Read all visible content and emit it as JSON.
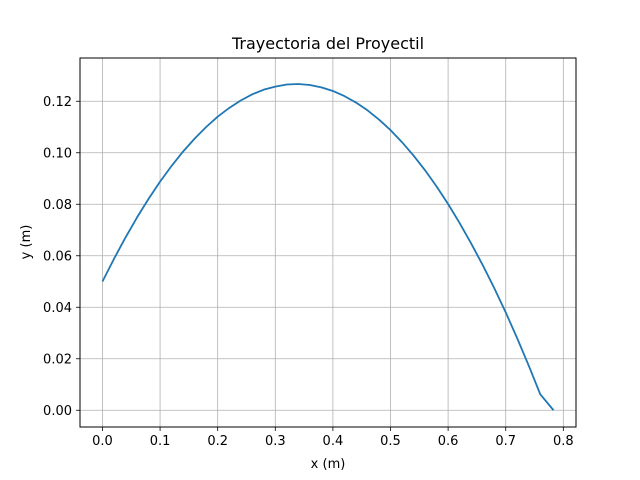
{
  "chart_data": {
    "type": "line",
    "title": "Trayectoria del Proyectil",
    "xlabel": "x (m)",
    "ylabel": "y (m)",
    "xlim": [
      -0.039,
      0.822
    ],
    "ylim": [
      -0.0065,
      0.1368
    ],
    "grid": true,
    "legend": "none",
    "x_ticks": [
      "0.0",
      "0.1",
      "0.2",
      "0.3",
      "0.4",
      "0.5",
      "0.6",
      "0.7",
      "0.8"
    ],
    "y_ticks": [
      "0.00",
      "0.02",
      "0.04",
      "0.06",
      "0.08",
      "0.10",
      "0.12"
    ],
    "series": [
      {
        "color": "#1f77b4",
        "x": [
          0.0,
          0.02,
          0.04,
          0.06,
          0.08,
          0.1,
          0.12,
          0.14,
          0.16,
          0.18,
          0.2,
          0.22,
          0.24,
          0.26,
          0.28,
          0.3,
          0.32,
          0.34,
          0.36,
          0.38,
          0.4,
          0.42,
          0.44,
          0.46,
          0.48,
          0.5,
          0.52,
          0.54,
          0.56,
          0.58,
          0.6,
          0.62,
          0.64,
          0.66,
          0.68,
          0.7,
          0.72,
          0.74,
          0.76,
          0.783
        ],
        "y": [
          0.05,
          0.0588,
          0.0671,
          0.0749,
          0.0821,
          0.0888,
          0.0949,
          0.1005,
          0.1055,
          0.11,
          0.114,
          0.1174,
          0.1203,
          0.1227,
          0.1245,
          0.1257,
          0.1265,
          0.1267,
          0.1263,
          0.1254,
          0.124,
          0.122,
          0.1195,
          0.1165,
          0.1129,
          0.1088,
          0.1041,
          0.0989,
          0.0932,
          0.0869,
          0.0801,
          0.0727,
          0.0648,
          0.0564,
          0.0475,
          0.038,
          0.0279,
          0.0173,
          0.0062,
          0.0
        ]
      }
    ]
  }
}
